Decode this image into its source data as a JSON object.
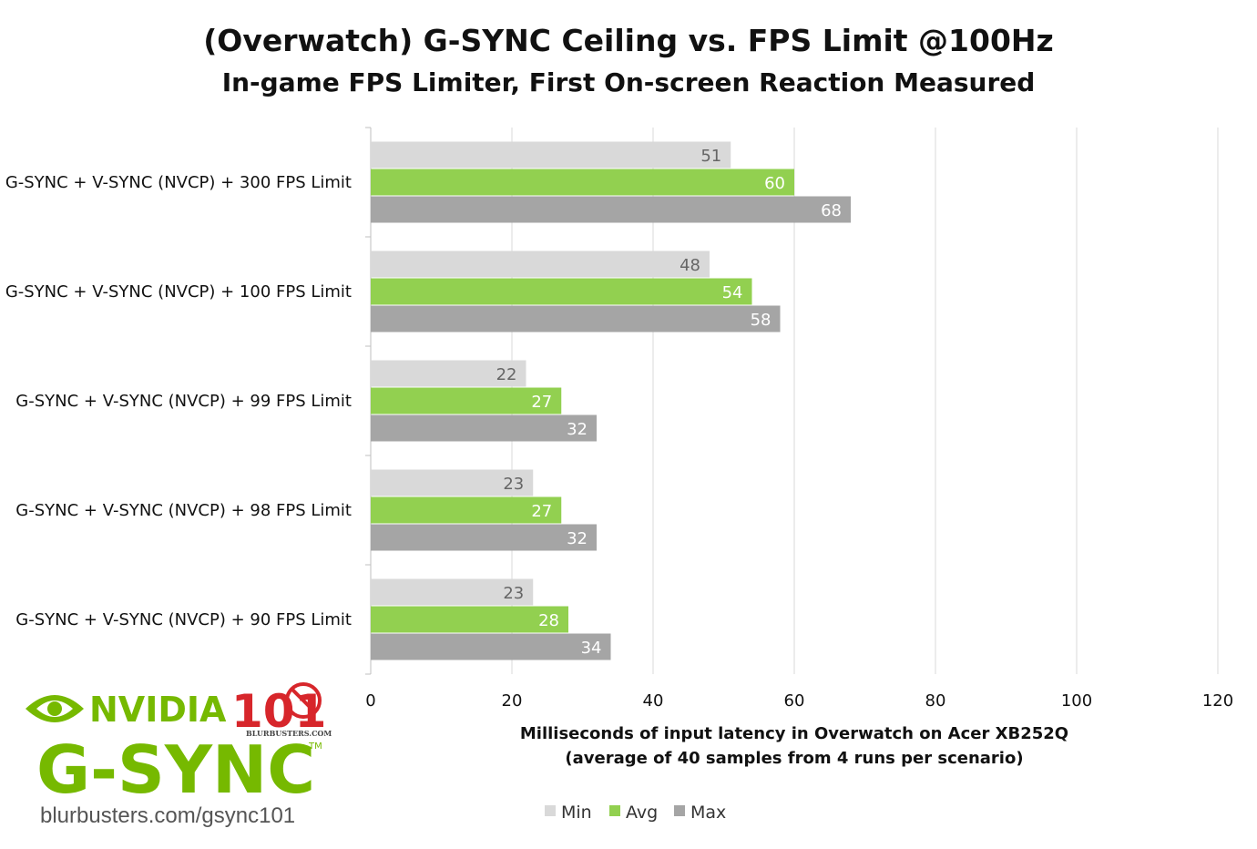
{
  "chart_data": {
    "type": "bar",
    "orientation": "horizontal",
    "title": "(Overwatch) G-SYNC Ceiling vs. FPS Limit @100Hz",
    "subtitle": "In-game FPS Limiter, First On-screen Reaction Measured",
    "categories": [
      "G-SYNC + V-SYNC (NVCP) + 300 FPS Limit",
      "G-SYNC + V-SYNC (NVCP) + 100 FPS Limit",
      "G-SYNC + V-SYNC (NVCP) + 99 FPS Limit",
      "G-SYNC + V-SYNC (NVCP) + 98 FPS Limit",
      "G-SYNC + V-SYNC (NVCP) + 90 FPS Limit"
    ],
    "series": [
      {
        "name": "Min",
        "color": "#d9d9d9",
        "label_color": "#666666",
        "values": [
          51,
          48,
          22,
          23,
          23
        ]
      },
      {
        "name": "Avg",
        "color": "#92d050",
        "label_color": "#ffffff",
        "values": [
          60,
          54,
          27,
          27,
          28
        ]
      },
      {
        "name": "Max",
        "color": "#a5a5a5",
        "label_color": "#ffffff",
        "values": [
          68,
          58,
          32,
          32,
          34
        ]
      }
    ],
    "xlabel_line1": "Milliseconds of input latency in Overwatch on Acer XB252Q",
    "xlabel_line2": "(average of 40 samples from 4 runs per scenario)",
    "xlim": [
      0,
      120
    ],
    "xticks": [
      0,
      20,
      40,
      60,
      80,
      100,
      120
    ],
    "grid": true,
    "legend_position": "bottom"
  },
  "logo": {
    "brand": "NVIDIA",
    "product": "G-SYNC",
    "badge": "101",
    "badge_site": "BLURBUSTERS.COM",
    "trademark": "TM",
    "url": "blurbusters.com/gsync101"
  }
}
